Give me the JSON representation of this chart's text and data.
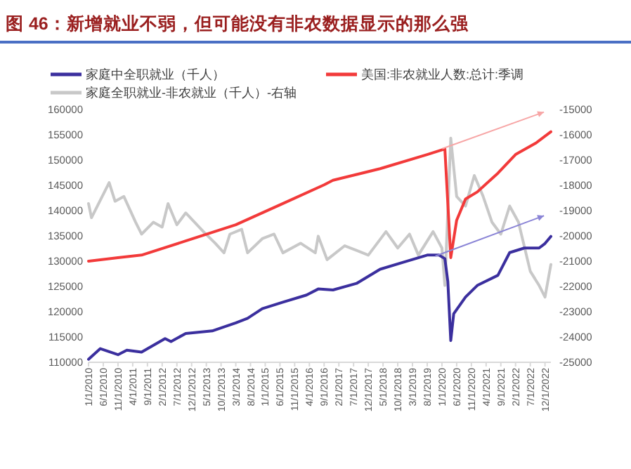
{
  "chart_data": {
    "type": "line",
    "title": "图 46：新增就业不弱，但可能没有非农数据显示的那么强",
    "legend": "top",
    "grid": false,
    "xlim": [
      "2010-01",
      "2023-02"
    ],
    "xticks": [
      {
        "value": "2010-01",
        "label": "1/1/2010"
      },
      {
        "value": "2010-06",
        "label": "6/1/2010"
      },
      {
        "value": "2010-11",
        "label": "11/1/2010"
      },
      {
        "value": "2011-04",
        "label": "4/1/2011"
      },
      {
        "value": "2011-09",
        "label": "9/1/2011"
      },
      {
        "value": "2012-02",
        "label": "2/1/2012"
      },
      {
        "value": "2012-07",
        "label": "7/1/2012"
      },
      {
        "value": "2012-12",
        "label": "12/1/2012"
      },
      {
        "value": "2013-05",
        "label": "5/1/2013"
      },
      {
        "value": "2013-10",
        "label": "10/1/2013"
      },
      {
        "value": "2014-03",
        "label": "3/1/2014"
      },
      {
        "value": "2014-08",
        "label": "8/1/2014"
      },
      {
        "value": "2015-01",
        "label": "1/1/2015"
      },
      {
        "value": "2015-06",
        "label": "6/1/2015"
      },
      {
        "value": "2015-11",
        "label": "11/1/2015"
      },
      {
        "value": "2016-04",
        "label": "4/1/2016"
      },
      {
        "value": "2016-09",
        "label": "9/1/2016"
      },
      {
        "value": "2017-02",
        "label": "2/1/2017"
      },
      {
        "value": "2017-07",
        "label": "7/1/2017"
      },
      {
        "value": "2017-12",
        "label": "12/1/2017"
      },
      {
        "value": "2018-05",
        "label": "5/1/2018"
      },
      {
        "value": "2018-10",
        "label": "10/1/2018"
      },
      {
        "value": "2019-03",
        "label": "3/1/2019"
      },
      {
        "value": "2019-08",
        "label": "8/1/2019"
      },
      {
        "value": "2020-01",
        "label": "1/1/2020"
      },
      {
        "value": "2020-06",
        "label": "6/1/2020"
      },
      {
        "value": "2020-11",
        "label": "11/1/2020"
      },
      {
        "value": "2021-04",
        "label": "4/1/2021"
      },
      {
        "value": "2021-09",
        "label": "9/1/2021"
      },
      {
        "value": "2022-02",
        "label": "2/1/2022"
      },
      {
        "value": "2022-07",
        "label": "7/1/2022"
      },
      {
        "value": "2022-12",
        "label": "12/1/2022"
      }
    ],
    "ylim": [
      110000,
      160000
    ],
    "yticks": [
      110000,
      115000,
      120000,
      125000,
      130000,
      135000,
      140000,
      145000,
      150000,
      155000,
      160000
    ],
    "y2lim": [
      -25000,
      -15000
    ],
    "y2ticks": [
      -25000,
      -24000,
      -23000,
      -22000,
      -21000,
      -20000,
      -19000,
      -18000,
      -17000,
      -16000,
      -15000
    ],
    "series": [
      {
        "name": "家庭中全职就业（千人）",
        "color": "#3b2f9e",
        "x": [
          "2010-01",
          "2010-05",
          "2010-11",
          "2011-02",
          "2011-07",
          "2012-03",
          "2012-05",
          "2012-10",
          "2013-07",
          "2014-03",
          "2014-07",
          "2014-12",
          "2015-07",
          "2016-03",
          "2016-07",
          "2016-12",
          "2017-08",
          "2018-04",
          "2018-12",
          "2019-08",
          "2019-12",
          "2020-02",
          "2020-03",
          "2020-04",
          "2020-05",
          "2020-09",
          "2021-01",
          "2021-08",
          "2021-12",
          "2022-05",
          "2022-10",
          "2022-12",
          "2023-02"
        ],
        "values": [
          110600,
          112700,
          111500,
          112400,
          112000,
          114700,
          114100,
          115700,
          116200,
          117800,
          118700,
          120600,
          121900,
          123300,
          124500,
          124300,
          125600,
          128400,
          129800,
          131200,
          131200,
          130500,
          126000,
          114300,
          119600,
          122900,
          125200,
          127200,
          131700,
          132600,
          132600,
          133500,
          134900
        ]
      },
      {
        "name": "美国:非农就业人数:总计:季调",
        "color": "#f23a3a",
        "x": [
          "2010-01",
          "2010-11",
          "2011-07",
          "2012-10",
          "2014-03",
          "2015-07",
          "2016-09",
          "2016-12",
          "2018-04",
          "2019-08",
          "2020-02",
          "2020-04",
          "2020-06",
          "2020-09",
          "2021-01",
          "2021-08",
          "2022-02",
          "2022-09",
          "2023-02"
        ],
        "values": [
          130000,
          130700,
          131200,
          134000,
          137200,
          141400,
          145100,
          146000,
          148300,
          151100,
          152200,
          130700,
          138100,
          142300,
          143700,
          147400,
          151100,
          153400,
          155600
        ]
      },
      {
        "name": "家庭全职就业-非农就业（千人）-右轴",
        "color": "#c8c8c8",
        "axis": "y2",
        "x": [
          "2010-01",
          "2010-02",
          "2010-08",
          "2010-10",
          "2011-01",
          "2011-05",
          "2011-07",
          "2011-11",
          "2012-02",
          "2012-04",
          "2012-07",
          "2012-10",
          "2013-04",
          "2013-08",
          "2013-11",
          "2014-01",
          "2014-05",
          "2014-07",
          "2014-12",
          "2015-04",
          "2015-07",
          "2016-01",
          "2016-06",
          "2016-07",
          "2016-10",
          "2017-04",
          "2017-08",
          "2017-12",
          "2018-06",
          "2018-10",
          "2019-02",
          "2019-05",
          "2019-10",
          "2020-01",
          "2020-02",
          "2020-04",
          "2020-06",
          "2020-09",
          "2020-12",
          "2021-03",
          "2021-06",
          "2021-09",
          "2021-12",
          "2022-03",
          "2022-07",
          "2022-10",
          "2022-12",
          "2023-02"
        ],
        "values": [
          -18720,
          -19280,
          -17890,
          -18630,
          -18440,
          -19460,
          -19930,
          -19460,
          -19650,
          -18720,
          -19560,
          -19090,
          -19830,
          -20290,
          -20670,
          -19930,
          -19740,
          -20670,
          -20110,
          -19930,
          -20670,
          -20290,
          -20670,
          -20010,
          -20940,
          -20390,
          -20570,
          -20760,
          -19830,
          -20480,
          -19930,
          -20760,
          -19830,
          -20480,
          -21960,
          -16130,
          -18440,
          -18820,
          -17610,
          -18440,
          -19460,
          -19930,
          -18820,
          -19460,
          -21400,
          -21960,
          -22420,
          -21130
        ]
      }
    ]
  }
}
